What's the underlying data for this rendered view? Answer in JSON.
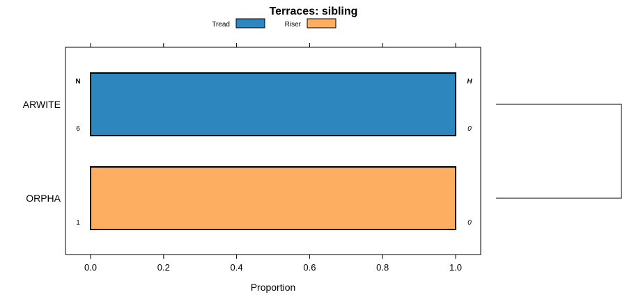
{
  "chart_data": {
    "type": "bar",
    "orientation": "horizontal",
    "stacked": true,
    "title": "Terraces: sibling",
    "xlabel": "Proportion",
    "ylabel": "",
    "xlim": [
      -0.07,
      1.07
    ],
    "x_ticks": [
      0.0,
      0.2,
      0.4,
      0.6,
      0.8,
      1.0
    ],
    "x_tick_labels": [
      "0.0",
      "0.2",
      "0.4",
      "0.6",
      "0.8",
      "1.0"
    ],
    "categories": [
      "ARWITE",
      "ORPHA"
    ],
    "series": [
      {
        "name": "Tread",
        "color": "#2e86bf",
        "values": [
          1.0,
          0.0
        ]
      },
      {
        "name": "Riser",
        "color": "#fdae61",
        "values": [
          0.0,
          1.0
        ]
      }
    ],
    "left_column": {
      "header": "N",
      "values": [
        "6",
        "1"
      ]
    },
    "right_column": {
      "header": "H",
      "values": [
        "0",
        "0"
      ]
    },
    "legend": {
      "position": "top",
      "entries": [
        "Tread",
        "Riser"
      ]
    },
    "dendrogram": {
      "position": "right",
      "leaves": [
        "ARWITE",
        "ORPHA"
      ]
    },
    "grid": false
  }
}
